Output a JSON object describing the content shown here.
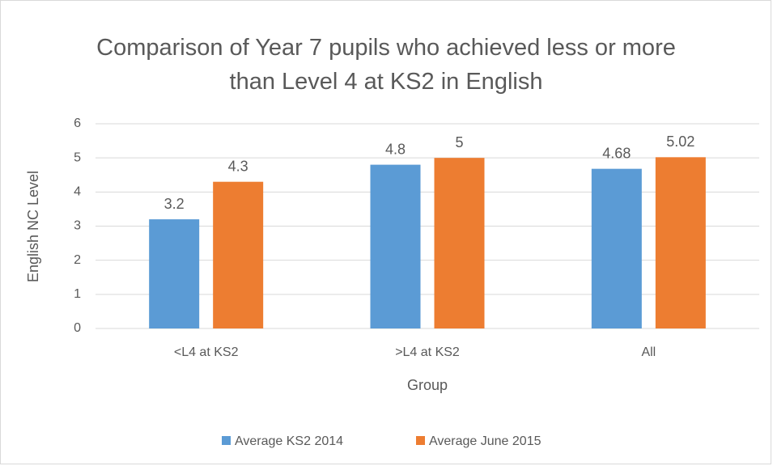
{
  "chart_data": {
    "type": "bar",
    "title": "Comparison of Year 7 pupils who achieved less or more than Level 4 at KS2 in English",
    "xlabel": "Group",
    "ylabel": "English NC Level",
    "categories": [
      "<L4 at KS2",
      ">L4 at KS2",
      "All"
    ],
    "series": [
      {
        "name": "Average KS2 2014",
        "color": "#5b9bd5",
        "values": [
          3.2,
          4.8,
          4.68
        ]
      },
      {
        "name": "Average June 2015",
        "color": "#ed7d31",
        "values": [
          4.3,
          5,
          5.02
        ]
      }
    ],
    "ylim": [
      0,
      6
    ],
    "yticks": [
      0,
      1,
      2,
      3,
      4,
      5,
      6
    ],
    "grid": true,
    "legend": "bottom"
  }
}
